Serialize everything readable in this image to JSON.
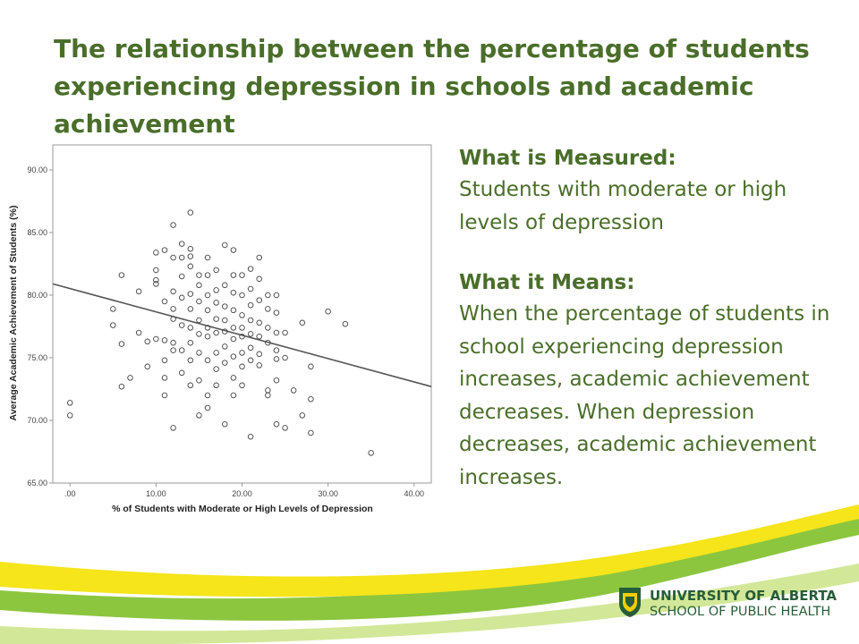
{
  "slide": {
    "title": "The relationship between the percentage of students experiencing depression in schools and academic achievement"
  },
  "panel": {
    "measured_heading": "What is Measured:",
    "measured_text": "Students with moderate or high levels of depression",
    "means_heading": "What it Means:",
    "means_text": "When the percentage of students in school experiencing depression increases, academic achievement decreases. When depression decreases, academic achievement increases."
  },
  "logo": {
    "line1": "UNIVERSITY OF ALBERTA",
    "line2": "SCHOOL OF PUBLIC HEALTH"
  },
  "colors": {
    "title_green": "#4a6e2a",
    "band_yellow": "#f5e51a",
    "band_green": "#8cc63f",
    "logo_green": "#275d38"
  },
  "chart_data": {
    "type": "scatter",
    "xlabel": "% of Students with Moderate or High Levels of Depression",
    "ylabel": "Average Academic Achievement of Students (%)",
    "xlim": [
      -2,
      42
    ],
    "ylim": [
      65,
      92
    ],
    "x_ticks": [
      ".00",
      "10.00",
      "20.00",
      "30.00",
      "40.00"
    ],
    "y_ticks": [
      "65.00",
      "70.00",
      "75.00",
      "80.00",
      "85.00",
      "90.00"
    ],
    "grid": false,
    "legend": "none",
    "fit_line": {
      "x": [
        -2,
        42
      ],
      "y": [
        80.9,
        72.7
      ]
    },
    "points": [
      [
        0,
        71.4
      ],
      [
        0,
        70.4
      ],
      [
        5,
        78.9
      ],
      [
        5,
        77.6
      ],
      [
        6,
        81.6
      ],
      [
        6,
        76.1
      ],
      [
        6,
        72.7
      ],
      [
        7,
        73.4
      ],
      [
        8,
        80.3
      ],
      [
        8,
        77.0
      ],
      [
        9,
        76.3
      ],
      [
        9,
        74.3
      ],
      [
        10,
        83.4
      ],
      [
        10,
        82.0
      ],
      [
        10,
        81.2
      ],
      [
        10,
        80.9
      ],
      [
        10,
        76.5
      ],
      [
        11,
        83.6
      ],
      [
        11,
        79.5
      ],
      [
        11,
        76.4
      ],
      [
        11,
        74.8
      ],
      [
        11,
        73.4
      ],
      [
        11,
        72.0
      ],
      [
        12,
        85.6
      ],
      [
        12,
        83.0
      ],
      [
        12,
        80.3
      ],
      [
        12,
        78.9
      ],
      [
        12,
        78.1
      ],
      [
        12,
        76.2
      ],
      [
        12,
        75.6
      ],
      [
        12,
        69.4
      ],
      [
        13,
        84.1
      ],
      [
        13,
        83.0
      ],
      [
        13,
        81.5
      ],
      [
        13,
        79.8
      ],
      [
        13,
        77.6
      ],
      [
        13,
        75.6
      ],
      [
        13,
        73.8
      ],
      [
        14,
        86.6
      ],
      [
        14,
        83.7
      ],
      [
        14,
        83.1
      ],
      [
        14,
        82.3
      ],
      [
        14,
        80.1
      ],
      [
        14,
        78.9
      ],
      [
        14,
        77.4
      ],
      [
        14,
        76.2
      ],
      [
        14,
        74.8
      ],
      [
        14,
        72.8
      ],
      [
        15,
        81.6
      ],
      [
        15,
        80.8
      ],
      [
        15,
        79.5
      ],
      [
        15,
        78.0
      ],
      [
        15,
        76.9
      ],
      [
        15,
        75.4
      ],
      [
        15,
        73.2
      ],
      [
        15,
        70.4
      ],
      [
        16,
        83.0
      ],
      [
        16,
        81.6
      ],
      [
        16,
        80.0
      ],
      [
        16,
        78.8
      ],
      [
        16,
        77.4
      ],
      [
        16,
        76.7
      ],
      [
        16,
        74.8
      ],
      [
        16,
        72.0
      ],
      [
        16,
        71.0
      ],
      [
        17,
        82.0
      ],
      [
        17,
        80.4
      ],
      [
        17,
        79.4
      ],
      [
        17,
        78.1
      ],
      [
        17,
        77.0
      ],
      [
        17,
        75.4
      ],
      [
        17,
        74.1
      ],
      [
        17,
        72.8
      ],
      [
        18,
        84.0
      ],
      [
        18,
        80.8
      ],
      [
        18,
        79.1
      ],
      [
        18,
        78.0
      ],
      [
        18,
        77.1
      ],
      [
        18,
        75.9
      ],
      [
        18,
        74.6
      ],
      [
        18,
        69.7
      ],
      [
        19,
        83.6
      ],
      [
        19,
        81.6
      ],
      [
        19,
        80.2
      ],
      [
        19,
        78.8
      ],
      [
        19,
        77.4
      ],
      [
        19,
        76.5
      ],
      [
        19,
        75.1
      ],
      [
        19,
        73.4
      ],
      [
        19,
        72.0
      ],
      [
        20,
        81.6
      ],
      [
        20,
        80.0
      ],
      [
        20,
        78.4
      ],
      [
        20,
        77.4
      ],
      [
        20,
        76.7
      ],
      [
        20,
        75.4
      ],
      [
        20,
        74.3
      ],
      [
        20,
        72.8
      ],
      [
        21,
        82.1
      ],
      [
        21,
        80.5
      ],
      [
        21,
        79.2
      ],
      [
        21,
        78.0
      ],
      [
        21,
        76.9
      ],
      [
        21,
        75.8
      ],
      [
        21,
        74.8
      ],
      [
        21,
        68.7
      ],
      [
        22,
        83.0
      ],
      [
        22,
        81.3
      ],
      [
        22,
        79.6
      ],
      [
        22,
        77.8
      ],
      [
        22,
        76.7
      ],
      [
        22,
        75.3
      ],
      [
        22,
        74.4
      ],
      [
        23,
        80.0
      ],
      [
        23,
        78.9
      ],
      [
        23,
        77.4
      ],
      [
        23,
        76.2
      ],
      [
        23,
        72.4
      ],
      [
        23,
        72.0
      ],
      [
        24,
        80.0
      ],
      [
        24,
        78.6
      ],
      [
        24,
        77.0
      ],
      [
        24,
        75.6
      ],
      [
        24,
        74.9
      ],
      [
        24,
        73.2
      ],
      [
        24,
        69.7
      ],
      [
        25,
        77.0
      ],
      [
        25,
        75.0
      ],
      [
        25,
        69.4
      ],
      [
        26,
        72.4
      ],
      [
        27,
        70.4
      ],
      [
        27,
        77.8
      ],
      [
        28,
        74.3
      ],
      [
        28,
        71.7
      ],
      [
        28,
        69.0
      ],
      [
        30,
        78.7
      ],
      [
        32,
        77.7
      ],
      [
        35,
        67.4
      ]
    ]
  }
}
